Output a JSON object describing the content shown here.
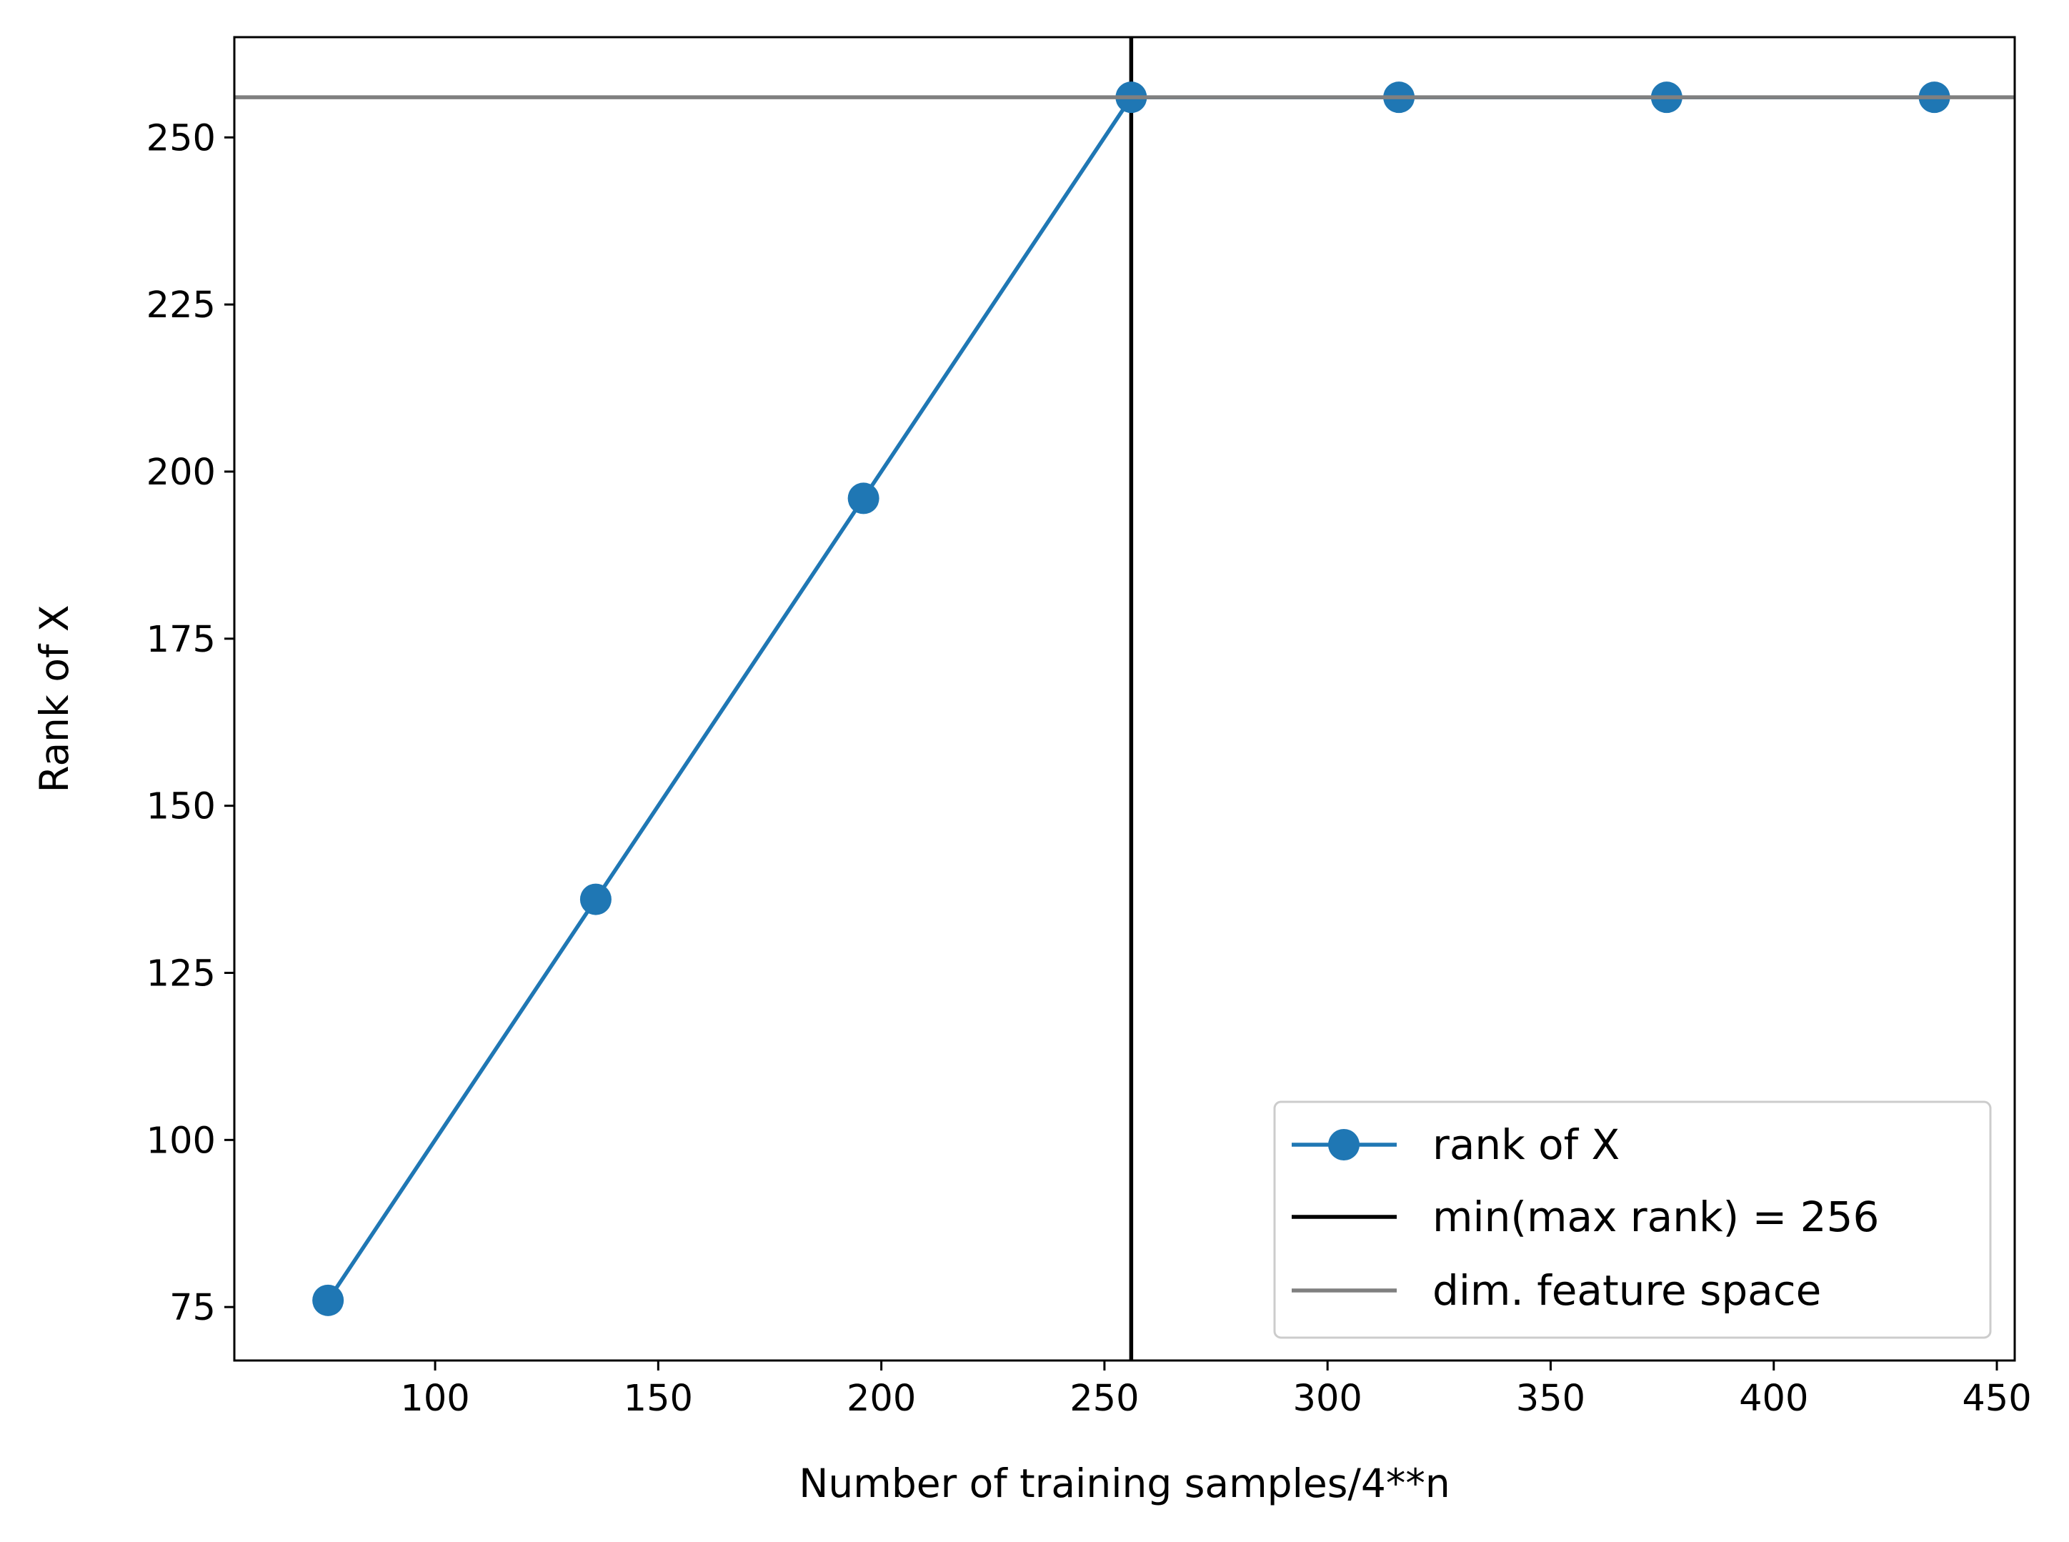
{
  "chart_data": {
    "type": "line",
    "title": "",
    "xlabel": "Number of training samples/4**n",
    "ylabel": "Rank of X",
    "xlim": [
      55,
      454
    ],
    "ylim": [
      67,
      265
    ],
    "xticks": [
      100,
      150,
      200,
      250,
      300,
      350,
      400,
      450
    ],
    "yticks": [
      75,
      100,
      125,
      150,
      175,
      200,
      225,
      250
    ],
    "grid": false,
    "legend_position": "bottom-right",
    "series": [
      {
        "name": "rank of X",
        "color": "#1f77b4",
        "marker": "circle",
        "x": [
          76,
          136,
          196,
          256,
          316,
          376,
          436
        ],
        "y": [
          76,
          136,
          196,
          256,
          256,
          256,
          256
        ]
      }
    ],
    "reference_lines": [
      {
        "name": "min(max rank) = 256",
        "orientation": "vertical",
        "value": 256,
        "color": "#000000"
      },
      {
        "name": "dim. feature space",
        "orientation": "horizontal",
        "value": 256,
        "color": "#808080"
      }
    ]
  }
}
